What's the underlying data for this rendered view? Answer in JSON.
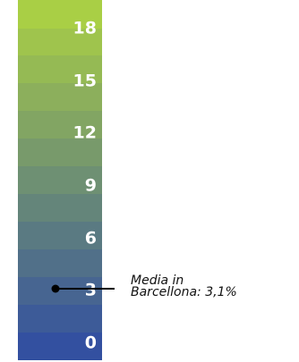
{
  "chart_data": {
    "type": "color-scale",
    "ylim": [
      0,
      18
    ],
    "ticks": [
      {
        "value": 18,
        "label": "18"
      },
      {
        "value": 15,
        "label": "15"
      },
      {
        "value": 12,
        "label": "12"
      },
      {
        "value": 9,
        "label": "9"
      },
      {
        "value": 6,
        "label": "6"
      },
      {
        "value": 3,
        "label": "3"
      },
      {
        "value": 0,
        "label": "0"
      }
    ],
    "gradient": {
      "low_color": "#3350a0",
      "high_color": "#a9cf45"
    },
    "steps": 13,
    "marker": {
      "value": 3.1,
      "label_line1": "Media in",
      "label_line2": "Barcellona: 3,1%"
    }
  }
}
